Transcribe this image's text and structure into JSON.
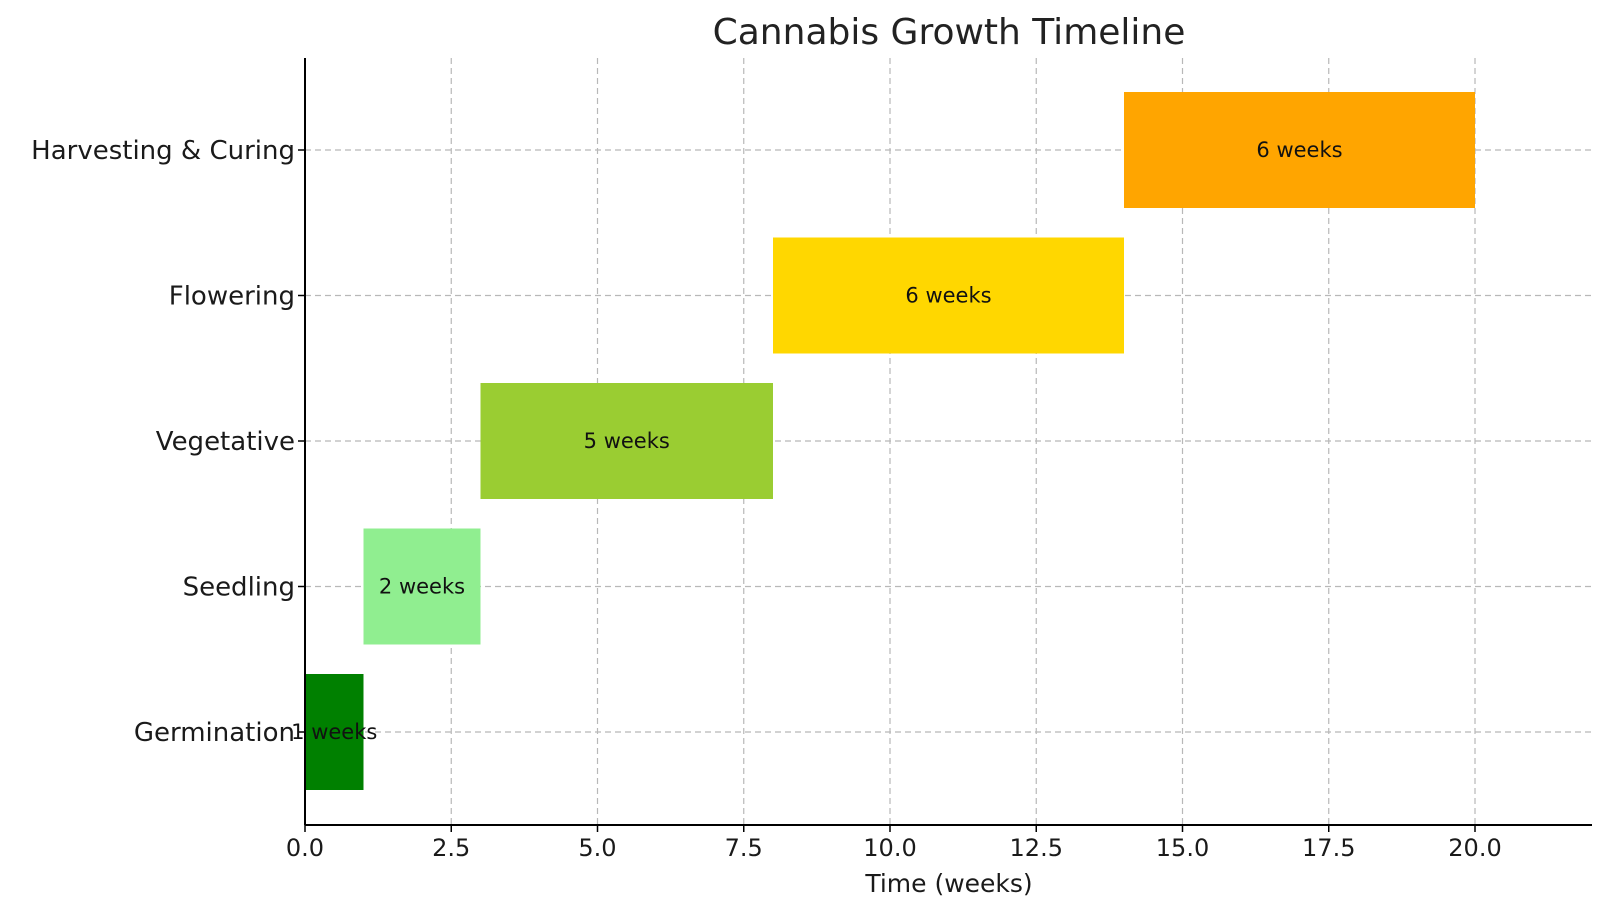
{
  "chart_data": {
    "type": "bar",
    "orientation": "horizontal",
    "title": "Cannabis Growth Timeline",
    "xlabel": "Time (weeks)",
    "ylabel": "",
    "xlim": [
      0,
      22
    ],
    "xticks": [
      "0.0",
      "2.5",
      "5.0",
      "7.5",
      "10.0",
      "12.5",
      "15.0",
      "17.5",
      "20.0"
    ],
    "grid": true,
    "categories": [
      "Germination",
      "Seedling",
      "Vegetative",
      "Flowering",
      "Harvesting & Curing"
    ],
    "starts": [
      0,
      1,
      3,
      8,
      14
    ],
    "durations": [
      1,
      2,
      5,
      6,
      6
    ],
    "bar_labels": [
      "1 weeks",
      "2 weeks",
      "5 weeks",
      "6 weeks",
      "6 weeks"
    ],
    "colors": [
      "#008000",
      "#90ee90",
      "#9acd32",
      "#ffd700",
      "#ffa500"
    ]
  }
}
